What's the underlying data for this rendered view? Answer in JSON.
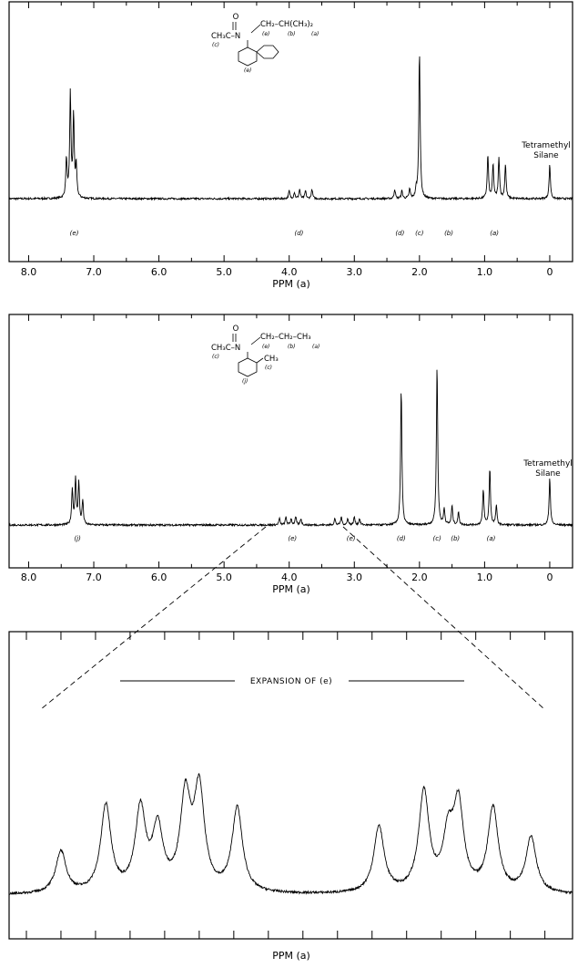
{
  "chart_data": [
    {
      "type": "line",
      "xlabel": "PPM (a)",
      "xlim": [
        8.3,
        -0.35
      ],
      "x_ticks": [
        "8.0",
        "7.0",
        "6.0",
        "5.0",
        "4.0",
        "3.0",
        "2.0",
        "1.0",
        "0"
      ],
      "series": [
        {
          "peaks": [
            {
              "x": 7.42,
              "y": 0.25
            },
            {
              "x": 7.36,
              "y": 0.67
            },
            {
              "x": 7.31,
              "y": 0.52
            },
            {
              "x": 7.27,
              "y": 0.2
            },
            {
              "x": 4.0,
              "y": 0.05
            },
            {
              "x": 3.92,
              "y": 0.04
            },
            {
              "x": 3.84,
              "y": 0.06
            },
            {
              "x": 3.75,
              "y": 0.05
            },
            {
              "x": 3.65,
              "y": 0.06
            },
            {
              "x": 2.38,
              "y": 0.06
            },
            {
              "x": 2.27,
              "y": 0.05
            },
            {
              "x": 2.15,
              "y": 0.06
            },
            {
              "x": 2.05,
              "y": 0.05
            },
            {
              "x": 2.0,
              "y": 0.95
            },
            {
              "x": 0.95,
              "y": 0.28
            },
            {
              "x": 0.87,
              "y": 0.22
            },
            {
              "x": 0.78,
              "y": 0.26
            },
            {
              "x": 0.68,
              "y": 0.22
            },
            {
              "x": 0.0,
              "y": 0.22
            }
          ]
        }
      ],
      "peak_labels": [
        {
          "x": 7.3,
          "text": "(e)"
        },
        {
          "x": 3.85,
          "text": "(d)"
        },
        {
          "x": 2.3,
          "text": "(d)"
        },
        {
          "x": 2.0,
          "text": "(c)"
        },
        {
          "x": 1.55,
          "text": "(b)"
        },
        {
          "x": 0.85,
          "text": "(a)"
        }
      ],
      "reference": [
        "Tetramethyl",
        "Silane"
      ],
      "structure": {
        "o": "O",
        "acyl": "CH₃C–N",
        "chain": "CH₂–CH(CH₃)₂",
        "tags": [
          "(c)",
          "(e)",
          "(b)",
          "(a)",
          "(e)"
        ]
      }
    },
    {
      "type": "line",
      "xlabel": "PPM (a)",
      "xlim": [
        8.3,
        -0.35
      ],
      "x_ticks": [
        "8.0",
        "7.0",
        "6.0",
        "5.0",
        "4.0",
        "3.0",
        "2.0",
        "1.0",
        "0"
      ],
      "series": [
        {
          "peaks": [
            {
              "x": 7.33,
              "y": 0.22
            },
            {
              "x": 7.28,
              "y": 0.28
            },
            {
              "x": 7.23,
              "y": 0.26
            },
            {
              "x": 7.17,
              "y": 0.15
            },
            {
              "x": 4.15,
              "y": 0.04
            },
            {
              "x": 4.05,
              "y": 0.05
            },
            {
              "x": 3.97,
              "y": 0.04
            },
            {
              "x": 3.9,
              "y": 0.05
            },
            {
              "x": 3.82,
              "y": 0.04
            },
            {
              "x": 3.3,
              "y": 0.04
            },
            {
              "x": 3.2,
              "y": 0.05
            },
            {
              "x": 3.1,
              "y": 0.04
            },
            {
              "x": 3.0,
              "y": 0.05
            },
            {
              "x": 2.92,
              "y": 0.04
            },
            {
              "x": 2.28,
              "y": 0.85
            },
            {
              "x": 1.73,
              "y": 1.0
            },
            {
              "x": 1.62,
              "y": 0.1
            },
            {
              "x": 1.5,
              "y": 0.12
            },
            {
              "x": 1.4,
              "y": 0.08
            },
            {
              "x": 1.02,
              "y": 0.22
            },
            {
              "x": 0.92,
              "y": 0.35
            },
            {
              "x": 0.82,
              "y": 0.12
            },
            {
              "x": 0.0,
              "y": 0.3
            }
          ]
        }
      ],
      "peak_labels": [
        {
          "x": 7.25,
          "text": "(j)"
        },
        {
          "x": 3.95,
          "text": "(e)"
        },
        {
          "x": 3.05,
          "text": "(e)"
        },
        {
          "x": 2.28,
          "text": "(d)"
        },
        {
          "x": 1.73,
          "text": "(c)"
        },
        {
          "x": 1.45,
          "text": "(b)"
        },
        {
          "x": 0.9,
          "text": "(a)"
        }
      ],
      "reference": [
        "Tetramethyl",
        "Silane"
      ],
      "structure": {
        "o": "O",
        "acyl": "CH₃C–N",
        "chain": "CH₂–CH₂–CH₃",
        "substituent": "CH₃",
        "tags": [
          "(c)",
          "(e)",
          "(b)",
          "(a)",
          "(j)",
          "(c)"
        ]
      }
    },
    {
      "type": "line",
      "title": "EXPANSION OF (e)",
      "xlabel": "PPM (a)",
      "xlim": [
        4.35,
        2.72
      ],
      "series": [
        {
          "peaks": [
            {
              "x": 4.2,
              "y": 0.33
            },
            {
              "x": 4.07,
              "y": 0.68
            },
            {
              "x": 3.97,
              "y": 0.64
            },
            {
              "x": 3.92,
              "y": 0.48
            },
            {
              "x": 3.84,
              "y": 0.72
            },
            {
              "x": 3.8,
              "y": 0.78
            },
            {
              "x": 3.69,
              "y": 0.66
            },
            {
              "x": 3.28,
              "y": 0.52
            },
            {
              "x": 3.15,
              "y": 0.78
            },
            {
              "x": 3.08,
              "y": 0.4
            },
            {
              "x": 3.05,
              "y": 0.66
            },
            {
              "x": 2.95,
              "y": 0.66
            },
            {
              "x": 2.84,
              "y": 0.44
            }
          ]
        }
      ]
    }
  ]
}
